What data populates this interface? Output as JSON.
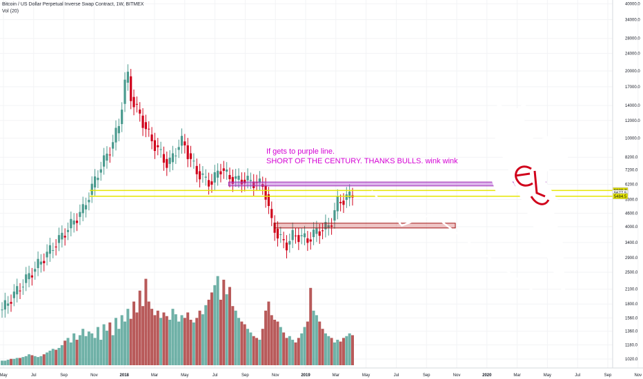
{
  "header": {
    "title": "Bitcoin / US Dollar Perpetual Inverse Swap Contract, 1W, BITMEX",
    "volume_label": "Vol (20)"
  },
  "annotation": {
    "line1": "If gets to purple line.",
    "line2": "SHORT OF THE CENTURY. THANKS BULLS. wink wink"
  },
  "colors": {
    "up": "#26a69a",
    "down": "#ef5350",
    "up_candle": "#4a9a8e",
    "down_candle": "#d0021b",
    "purple_zone": "#b55cd6",
    "red_zone": "#c02020",
    "yellow_line": "#e6e600",
    "projection": "#ffffff"
  },
  "chart_data": {
    "type": "candlestick",
    "title": "Bitcoin / US Dollar Perpetual Inverse Swap Contract, 1W, BITMEX",
    "price_axis": {
      "scale": "log",
      "ticks": [
        "40000.0",
        "34000.0",
        "28000.0",
        "24000.0",
        "20000.0",
        "17000.0",
        "14000.0",
        "12000.0",
        "10000.0",
        "8200.0",
        "7200.0",
        "6200.0",
        "5300.0",
        "4600.0",
        "4000.0",
        "3400.0",
        "2900.0",
        "2500.0",
        "2100.0",
        "1800.0",
        "1560.0",
        "1360.0",
        "1180.0",
        "1020.0"
      ]
    },
    "price_labels": [
      {
        "value": "5820.7",
        "color": "#e6e600"
      },
      {
        "value": "5677.5",
        "color": "#ffffff"
      },
      {
        "value": "5484.5",
        "color": "#e6e600"
      }
    ],
    "time_axis": [
      "May",
      "Jul",
      "Sep",
      "Nov",
      "2018",
      "Mar",
      "May",
      "Jul",
      "Sep",
      "Nov",
      "2019",
      "Mar",
      "May",
      "Jul",
      "Sep",
      "Nov",
      "2020",
      "Mar",
      "May",
      "Jul",
      "Sep",
      "Nov"
    ],
    "horizontal_lines": [
      {
        "price": 5820.7,
        "color": "yellow"
      },
      {
        "price": 5484.5,
        "color": "yellow"
      }
    ],
    "zones": [
      {
        "name": "purple-resistance",
        "price_low": 6100,
        "price_high": 6350,
        "from": "Aug 2018",
        "to": "May 2020"
      },
      {
        "name": "red-support",
        "price_low": 3950,
        "price_high": 4150,
        "from": "Nov 2018",
        "to": "Nov 2019"
      }
    ],
    "projection_path": [
      {
        "date": "May 2019",
        "price": 5800
      },
      {
        "date": "Jul 2019",
        "price": 4050
      },
      {
        "date": "Sep 2019",
        "price": 4550
      },
      {
        "date": "Apr 2020",
        "price": 1990
      }
    ],
    "volume_series": {
      "name": "Vol (20)",
      "relative_values": [
        0.05,
        0.05,
        0.06,
        0.07,
        0.07,
        0.08,
        0.08,
        0.09,
        0.1,
        0.12,
        0.11,
        0.1,
        0.09,
        0.1,
        0.12,
        0.14,
        0.16,
        0.18,
        0.17,
        0.19,
        0.22,
        0.27,
        0.3,
        0.25,
        0.35,
        0.28,
        0.33,
        0.4,
        0.32,
        0.37,
        0.35,
        0.3,
        0.42,
        0.28,
        0.45,
        0.38,
        0.47,
        0.33,
        0.52,
        0.4,
        0.55,
        0.48,
        0.62,
        0.51,
        0.7,
        0.58,
        0.82,
        0.65,
        0.95,
        0.7,
        0.62,
        0.55,
        0.6,
        0.52,
        0.58,
        0.54,
        0.5,
        0.62,
        0.56,
        0.48,
        0.55,
        0.52,
        0.58,
        0.5,
        0.47,
        0.52,
        0.6,
        0.56,
        0.66,
        0.72,
        0.8,
        0.88,
        0.98,
        0.72,
        0.94,
        0.78,
        0.86,
        0.65,
        0.6,
        0.52,
        0.48,
        0.45,
        0.4,
        0.36,
        0.32,
        0.3,
        0.28,
        0.4,
        0.6,
        0.7,
        0.55,
        0.5,
        0.48,
        0.42,
        0.36,
        0.3,
        0.32,
        0.28,
        0.25,
        0.3,
        0.35,
        0.42,
        0.48,
        0.85,
        0.6,
        0.55,
        0.48,
        0.4,
        0.35,
        0.32,
        0.3,
        0.25,
        0.28,
        0.26,
        0.3,
        0.32,
        0.35,
        0.33,
        0.3,
        0.38,
        0.45,
        0.58,
        0.4
      ]
    }
  }
}
